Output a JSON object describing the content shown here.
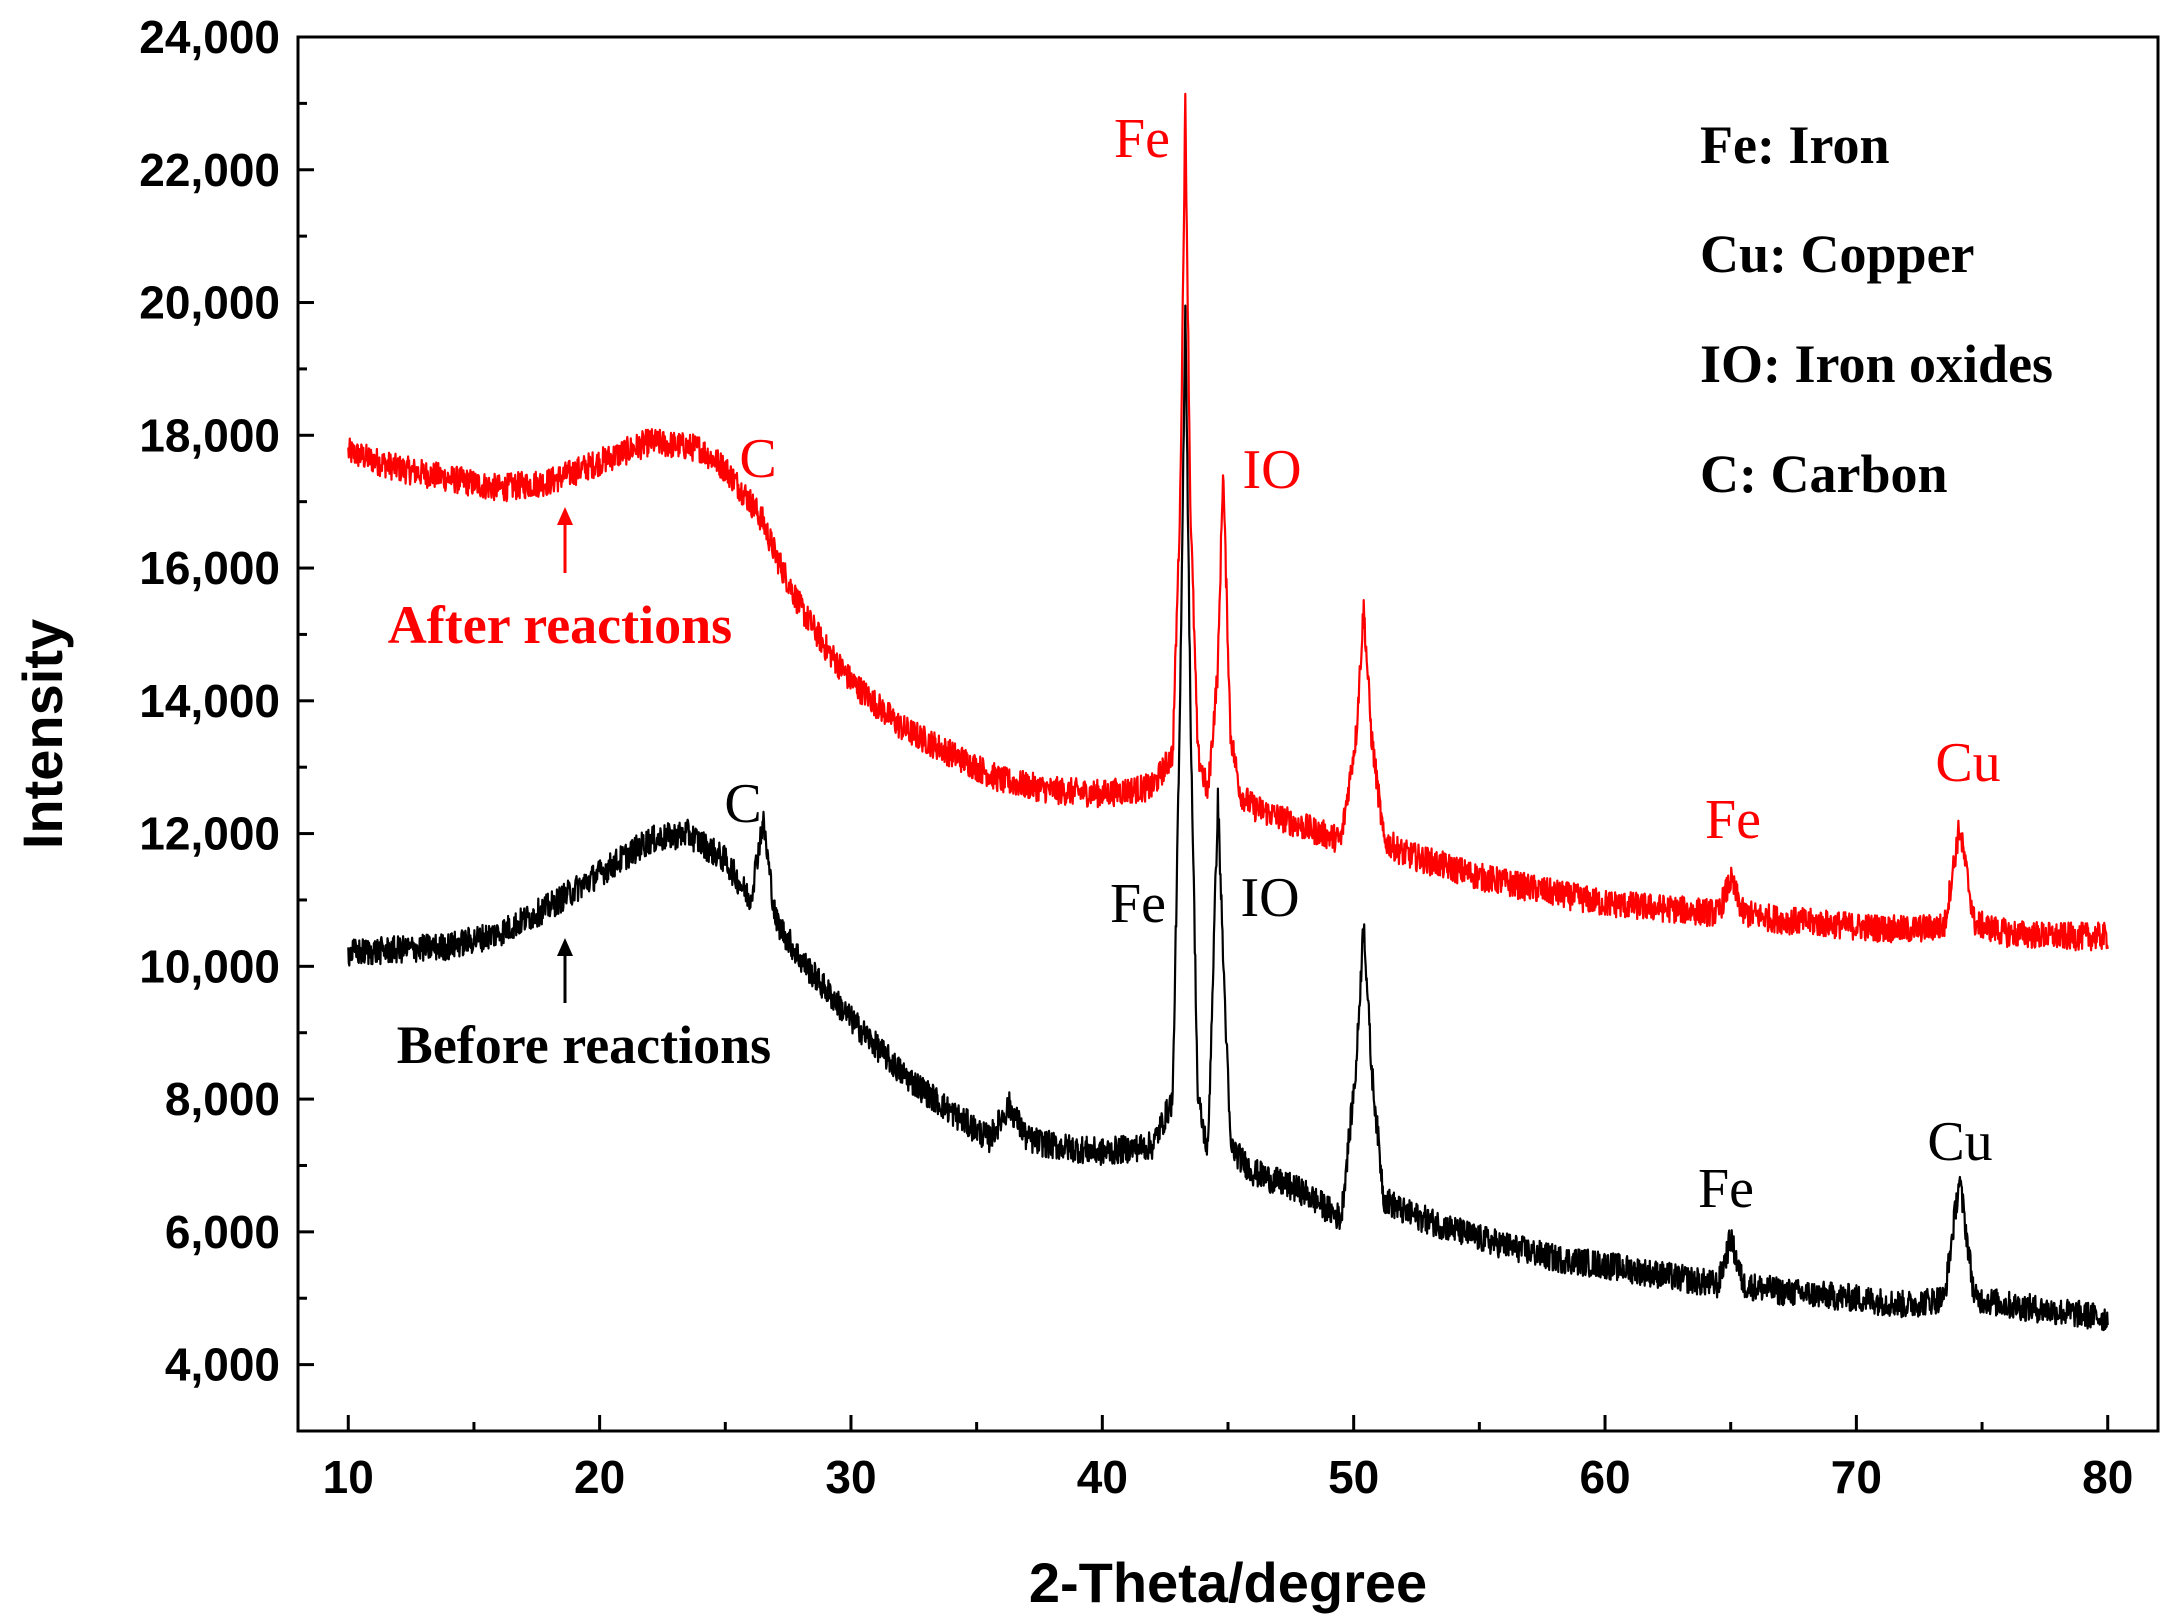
{
  "chart_data": {
    "type": "line",
    "title": "",
    "xlabel": "2-Theta/degree",
    "ylabel": "Intensity",
    "xlim": [
      8,
      82
    ],
    "ylim": [
      3000,
      24000
    ],
    "xticks": [
      10,
      20,
      30,
      40,
      50,
      60,
      70,
      80
    ],
    "yticks": [
      4000,
      6000,
      8000,
      10000,
      12000,
      14000,
      16000,
      18000,
      20000,
      22000,
      24000
    ],
    "ytick_labels": [
      "4,000",
      "6,000",
      "8,000",
      "10,000",
      "12,000",
      "14,000",
      "16,000",
      "18,000",
      "20,000",
      "22,000",
      "24,000"
    ],
    "series": [
      {
        "name": "After reactions",
        "color": "#ff0000",
        "x": [
          10,
          12,
          14,
          16,
          18,
          20,
          22,
          24,
          25,
          26,
          26.5,
          27,
          28,
          29,
          30,
          32,
          34,
          36,
          38,
          40,
          42,
          42.8,
          43.1,
          43.3,
          43.5,
          43.8,
          44.2,
          44.6,
          44.8,
          45.1,
          45.5,
          46,
          48,
          49.5,
          50.1,
          50.4,
          50.7,
          51.2,
          52,
          55,
          58,
          60,
          63,
          64.5,
          65,
          65.5,
          67,
          70,
          72,
          73.5,
          74.1,
          74.7,
          76,
          78,
          80
        ],
        "values": [
          17750,
          17500,
          17350,
          17200,
          17300,
          17600,
          17900,
          17800,
          17500,
          17000,
          16700,
          16200,
          15400,
          14800,
          14300,
          13600,
          13200,
          12800,
          12650,
          12600,
          12700,
          13200,
          17000,
          23000,
          17000,
          13200,
          12600,
          14500,
          17500,
          13500,
          12600,
          12400,
          12100,
          11900,
          13500,
          15400,
          13500,
          11900,
          11700,
          11350,
          11100,
          10950,
          10850,
          10800,
          11300,
          10800,
          10700,
          10600,
          10550,
          10600,
          12100,
          10650,
          10500,
          10450,
          10450
        ]
      },
      {
        "name": "Before reactions",
        "color": "#000000",
        "x": [
          10,
          12,
          14,
          16,
          18,
          20,
          22,
          23.5,
          25,
          26,
          26.5,
          27,
          28,
          30,
          32,
          34,
          35.5,
          36.3,
          37,
          38,
          40,
          42,
          42.8,
          43.1,
          43.3,
          43.5,
          43.8,
          44.2,
          44.6,
          44.8,
          45.1,
          45.5,
          46,
          48,
          49.5,
          50.1,
          50.4,
          50.7,
          51.2,
          52,
          55,
          58,
          60,
          63,
          64.5,
          65,
          65.5,
          67,
          70,
          72,
          73.5,
          74.1,
          74.7,
          76,
          78,
          80
        ],
        "values": [
          10200,
          10250,
          10300,
          10500,
          10900,
          11400,
          11900,
          12000,
          11600,
          11000,
          12200,
          10700,
          10100,
          9200,
          8400,
          7800,
          7400,
          7900,
          7400,
          7300,
          7200,
          7300,
          8000,
          14000,
          20000,
          14000,
          8000,
          7200,
          12500,
          10200,
          7300,
          7100,
          6900,
          6600,
          6200,
          8500,
          10700,
          8500,
          6500,
          6300,
          5900,
          5600,
          5500,
          5300,
          5200,
          5900,
          5200,
          5100,
          5000,
          4900,
          5000,
          6800,
          5000,
          4900,
          4800,
          4700
        ]
      }
    ],
    "peak_labels": [
      {
        "text": "Fe",
        "x": 43.3,
        "series": "After reactions",
        "color": "#ff0000"
      },
      {
        "text": "IO",
        "x": 44.8,
        "series": "After reactions",
        "color": "#ff0000"
      },
      {
        "text": "C",
        "x": 26.5,
        "series": "After reactions",
        "color": "#ff0000"
      },
      {
        "text": "Fe",
        "x": 65,
        "series": "After reactions",
        "color": "#ff0000"
      },
      {
        "text": "Cu",
        "x": 74.1,
        "series": "After reactions",
        "color": "#ff0000"
      },
      {
        "text": "Fe",
        "x": 43.3,
        "series": "Before reactions",
        "color": "#000000"
      },
      {
        "text": "IO",
        "x": 44.8,
        "series": "Before reactions",
        "color": "#000000"
      },
      {
        "text": "C",
        "x": 26.5,
        "series": "Before reactions",
        "color": "#000000"
      },
      {
        "text": "Fe",
        "x": 65,
        "series": "Before reactions",
        "color": "#000000"
      },
      {
        "text": "Cu",
        "x": 74.1,
        "series": "Before reactions",
        "color": "#000000"
      }
    ],
    "series_labels": [
      {
        "text": "After reactions",
        "color": "#ff0000",
        "arrow_x": 18.5
      },
      {
        "text": "Before reactions",
        "color": "#000000",
        "arrow_x": 18.5
      }
    ],
    "legend": [
      "Fe: Iron",
      "Cu: Copper",
      "IO: Iron oxides",
      "C: Carbon"
    ],
    "legend_placement": "top-right"
  }
}
